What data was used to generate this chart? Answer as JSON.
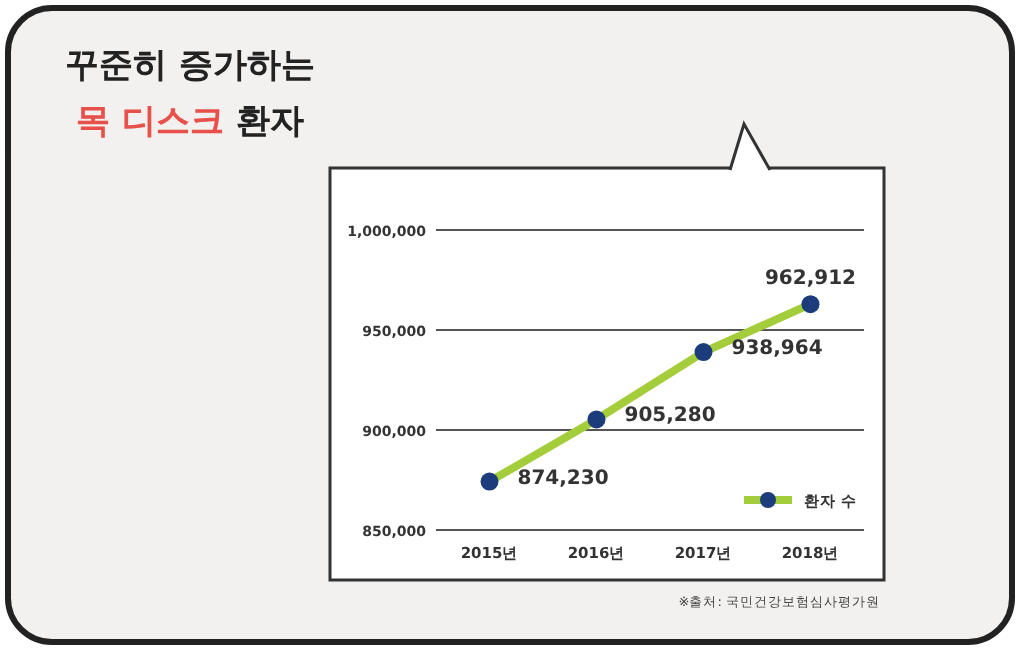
{
  "chart_data": {
    "type": "line",
    "title": "꾸준히 증가하는",
    "subtitle": "목 디스크 환자",
    "categories": [
      "2015년",
      "2016년",
      "2017년",
      "2018년"
    ],
    "series": [
      {
        "name": "환자 수",
        "color": "#a3cd3b",
        "values": [
          874230,
          905280,
          938964,
          962912
        ],
        "value_labels": [
          "874,230",
          "905,280",
          "938,964",
          "962,912"
        ]
      }
    ],
    "marker": "circle",
    "line_style": "solid",
    "ylim": [
      850000,
      1000000
    ],
    "yticks": [
      {
        "value": 850000,
        "label": "850,000"
      },
      {
        "value": 900000,
        "label": "900,000"
      },
      {
        "value": 950000,
        "label": "950,000"
      },
      {
        "value": 1000000,
        "label": "1,000,000"
      }
    ],
    "grid": "y",
    "legend": "bottom right",
    "annotations": [
      "※출처: 국민건강보험심사평가원"
    ]
  }
}
